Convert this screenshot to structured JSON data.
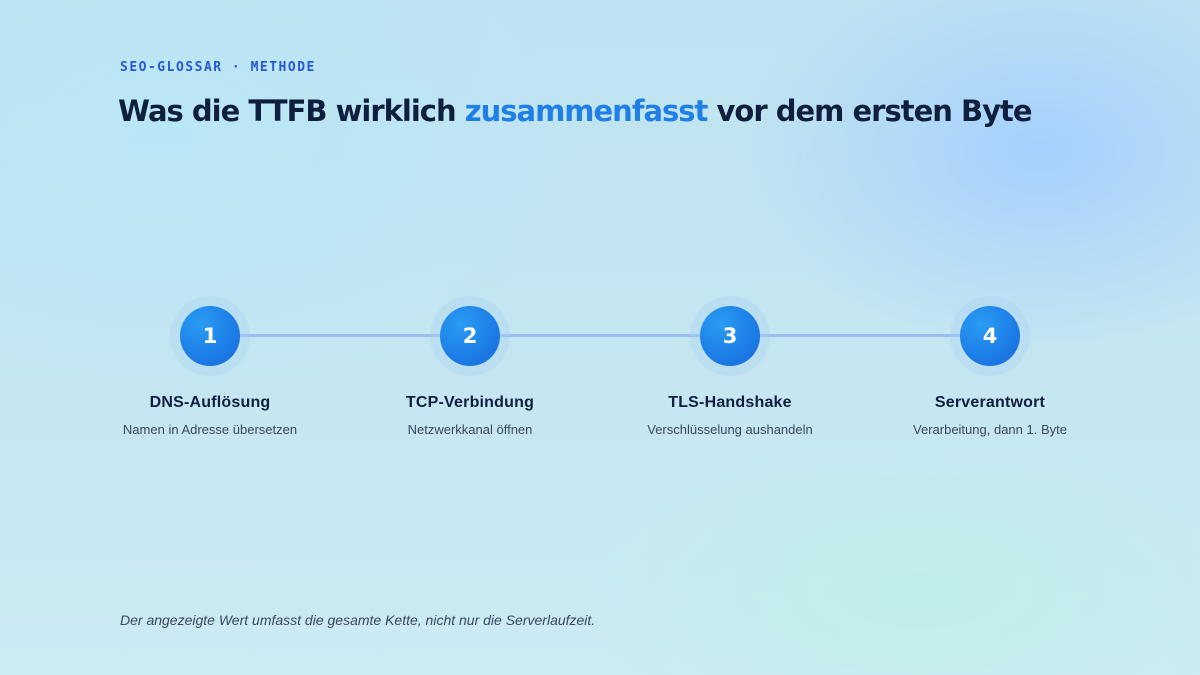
{
  "header": {
    "eyebrow": "SEO-GLOSSAR · METHODE",
    "title_before": "Was die TTFB wirklich ",
    "title_highlight": "zusammenfasst",
    "title_after": " vor dem ersten Byte"
  },
  "steps": [
    {
      "number": "1",
      "title": "DNS-Auflösung",
      "description": "Namen in Adresse übersetzen"
    },
    {
      "number": "2",
      "title": "TCP-Verbindung",
      "description": "Netzwerkkanal öffnen"
    },
    {
      "number": "3",
      "title": "TLS-Handshake",
      "description": "Verschlüsselung aushandeln"
    },
    {
      "number": "4",
      "title": "Serverantwort",
      "description": "Verarbeitung, dann 1. Byte"
    }
  ],
  "footnote": "Der angezeigte Wert umfasst die gesamte Kette, nicht nur die Serverlaufzeit.",
  "colors": {
    "accent": "#1f7fe6",
    "eyebrow": "#2458d6",
    "text_dark": "#0f1f3d",
    "track": "#9bbcf4"
  }
}
